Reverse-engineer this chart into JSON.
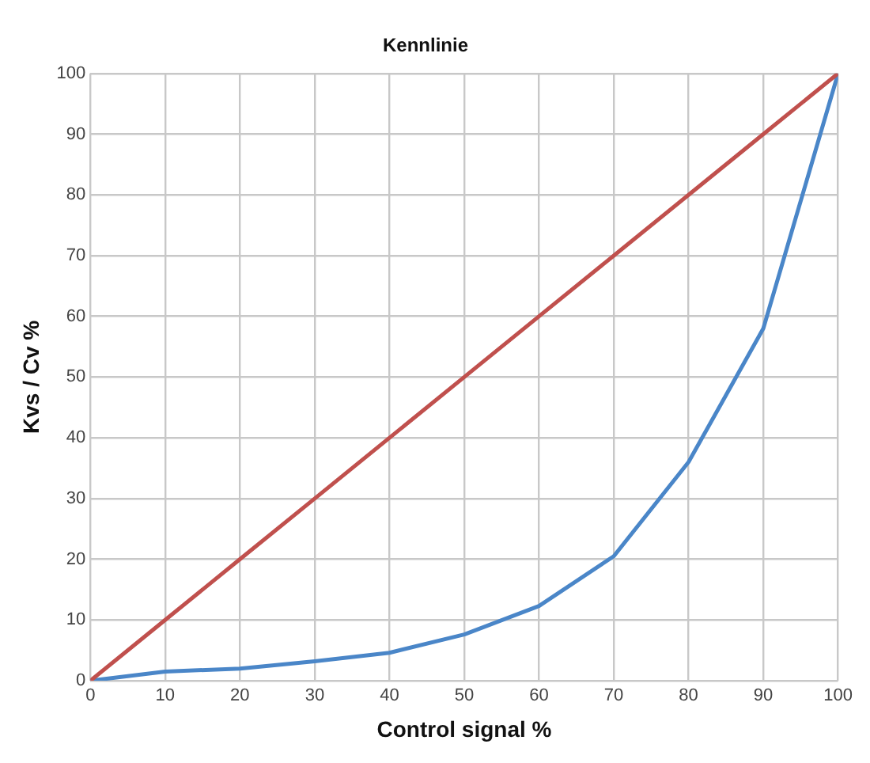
{
  "chart_data": {
    "type": "line",
    "title": "Kennlinie",
    "xlabel": "Control signal %",
    "ylabel": "Kvs / Cv %",
    "x": [
      0,
      10,
      20,
      30,
      40,
      50,
      60,
      70,
      80,
      90,
      100
    ],
    "series": [
      {
        "color": "#c0504d",
        "values": [
          0,
          10,
          20,
          30,
          40,
          50,
          60,
          70,
          80,
          90,
          100
        ]
      },
      {
        "color": "#4a86c8",
        "values": [
          0,
          1.5,
          2,
          3.2,
          4.6,
          7.6,
          12.3,
          20.5,
          36,
          58,
          100
        ]
      }
    ],
    "xlim": [
      0,
      100
    ],
    "xticks": [
      0,
      10,
      20,
      30,
      40,
      50,
      60,
      70,
      80,
      90,
      100
    ],
    "ylim": [
      0,
      100
    ],
    "yticks": [
      0,
      10,
      20,
      30,
      40,
      50,
      60,
      70,
      80,
      90,
      100
    ],
    "grid": true,
    "legend": false,
    "marker": "none",
    "line_style": "solid"
  }
}
